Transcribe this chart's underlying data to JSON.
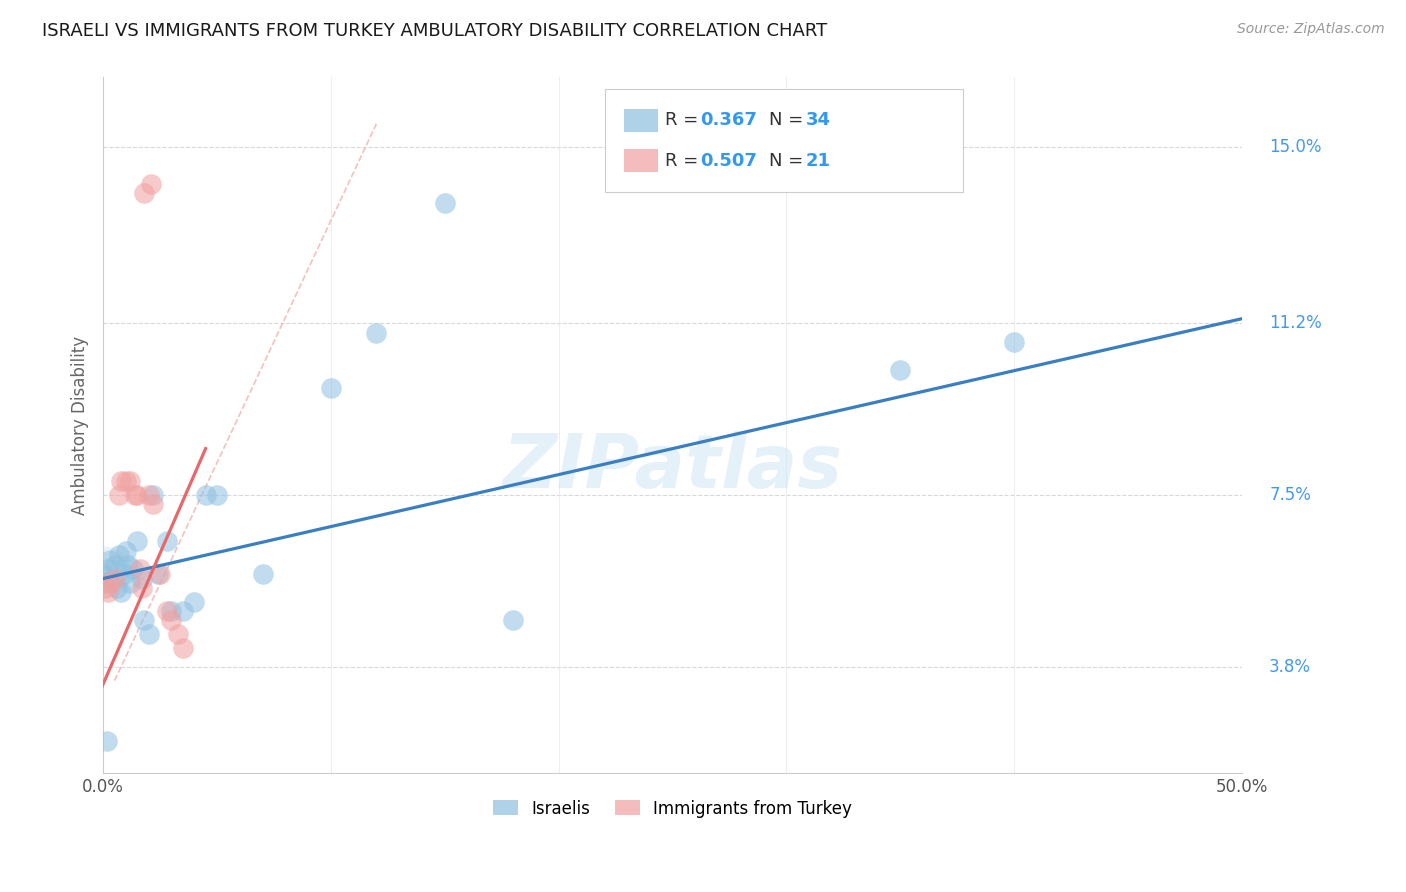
{
  "title": "ISRAELI VS IMMIGRANTS FROM TURKEY AMBULATORY DISABILITY CORRELATION CHART",
  "source": "Source: ZipAtlas.com",
  "ylabel_label": "Ambulatory Disability",
  "xlim": [
    0.0,
    50.0
  ],
  "watermark": "ZIPatlas",
  "blue_color": "#a8cce8",
  "pink_color": "#f5b8b8",
  "blue_line_color": "#3a7fc1",
  "pink_line_color": "#e8686a",
  "blue_scatter_color": "#8ec0e0",
  "pink_scatter_color": "#f0a0a0",
  "grid_color": "#d8d8d8",
  "ytick_vals": [
    3.8,
    7.5,
    11.2,
    15.0
  ],
  "ytick_labels": [
    "3.8%",
    "7.5%",
    "11.2%",
    "15.0%"
  ],
  "y_min": 1.5,
  "y_max": 16.5,
  "israelis_x": [
    0.0,
    0.1,
    0.2,
    0.3,
    0.4,
    0.5,
    0.6,
    0.7,
    0.8,
    0.9,
    1.0,
    1.1,
    1.2,
    1.3,
    1.5,
    1.7,
    1.8,
    2.0,
    2.2,
    2.4,
    2.8,
    3.0,
    3.5,
    4.0,
    4.5,
    5.0,
    7.0,
    10.0,
    12.0,
    15.0,
    18.0,
    35.0,
    40.0,
    0.15
  ],
  "israelis_y": [
    5.8,
    5.6,
    5.9,
    6.1,
    5.7,
    6.0,
    5.5,
    6.2,
    5.4,
    5.8,
    6.3,
    6.0,
    5.6,
    5.9,
    6.5,
    5.7,
    4.8,
    4.5,
    7.5,
    5.8,
    6.5,
    5.0,
    5.0,
    5.2,
    7.5,
    7.5,
    5.8,
    9.8,
    11.0,
    13.8,
    4.8,
    10.2,
    10.8,
    2.2
  ],
  "turkey_x": [
    0.1,
    0.2,
    0.3,
    0.5,
    0.7,
    0.8,
    1.0,
    1.2,
    1.4,
    1.5,
    1.7,
    2.0,
    2.2,
    2.5,
    2.8,
    3.0,
    3.3,
    3.5,
    1.8,
    2.1,
    1.6
  ],
  "turkey_y": [
    5.5,
    5.4,
    5.6,
    5.7,
    7.5,
    7.8,
    7.8,
    7.8,
    7.5,
    7.5,
    5.5,
    7.5,
    7.3,
    5.8,
    5.0,
    4.8,
    4.5,
    4.2,
    14.0,
    14.2,
    5.9
  ],
  "blue_line_x0": 0.0,
  "blue_line_y0": 5.7,
  "blue_line_x1": 50.0,
  "blue_line_y1": 11.3,
  "pink_line_x0": -0.2,
  "pink_line_y0": 3.2,
  "pink_line_x1": 4.5,
  "pink_line_y1": 8.5,
  "ref_line_x0": 0.5,
  "ref_line_y0": 3.5,
  "ref_line_x1": 12.0,
  "ref_line_y1": 15.5
}
